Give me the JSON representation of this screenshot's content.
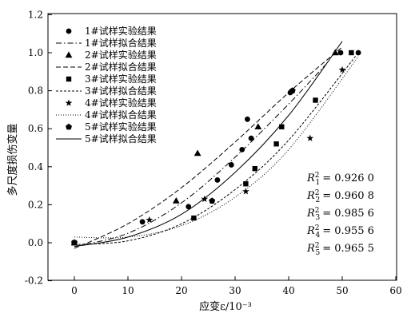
{
  "chart_data": {
    "type": "scatter",
    "title": "",
    "xlabel": "应变ε/10⁻³",
    "ylabel": "多尺度损伤变量",
    "xlim": [
      -5,
      60
    ],
    "ylim": [
      -0.2,
      1.2
    ],
    "xticks": [
      "0",
      "10",
      "20",
      "30",
      "40",
      "50",
      "60"
    ],
    "yticks": [
      "-0.2",
      "0.0",
      "0.2",
      "0.4",
      "0.6",
      "0.8",
      "1.0",
      "1.2"
    ],
    "grid": false,
    "legend_position": "top-left",
    "series": [
      {
        "name": "1#试样实验结果",
        "marker": "circle",
        "points": [
          [
            0,
            0.0
          ],
          [
            12.7,
            0.11
          ],
          [
            21.3,
            0.19
          ],
          [
            26.7,
            0.33
          ],
          [
            29.3,
            0.41
          ],
          [
            31.3,
            0.49
          ],
          [
            32.3,
            0.65
          ],
          [
            33.0,
            0.55
          ],
          [
            40.3,
            0.79
          ],
          [
            49.7,
            1.0
          ],
          [
            53.0,
            1.0
          ]
        ]
      },
      {
        "name": "1#试样拟合结果",
        "style": "dash-dot",
        "fit": [
          [
            0,
            -0.02
          ],
          [
            10,
            0.05
          ],
          [
            20,
            0.21
          ],
          [
            30,
            0.45
          ],
          [
            40,
            0.73
          ],
          [
            47,
            0.94
          ]
        ]
      },
      {
        "name": "2#试样实验结果",
        "marker": "triangle",
        "points": [
          [
            0,
            0.0
          ],
          [
            19.0,
            0.22
          ],
          [
            23.0,
            0.47
          ],
          [
            34.3,
            0.61
          ],
          [
            48.7,
            1.0
          ]
        ]
      },
      {
        "name": "2#试样拟合结果",
        "style": "dashed",
        "fit": [
          [
            0,
            -0.03
          ],
          [
            10,
            0.1
          ],
          [
            20,
            0.29
          ],
          [
            30,
            0.53
          ],
          [
            40,
            0.79
          ],
          [
            50,
            1.03
          ]
        ]
      },
      {
        "name": "3#试样实验结果",
        "marker": "square",
        "points": [
          [
            0,
            0.0
          ],
          [
            22.3,
            0.13
          ],
          [
            32.0,
            0.31
          ],
          [
            33.7,
            0.39
          ],
          [
            37.7,
            0.52
          ],
          [
            38.7,
            0.61
          ],
          [
            45.0,
            0.75
          ],
          [
            51.7,
            1.0
          ]
        ]
      },
      {
        "name": "3#试样拟合结果",
        "style": "short-dash",
        "fit": [
          [
            0,
            -0.01
          ],
          [
            10,
            0.01
          ],
          [
            20,
            0.1
          ],
          [
            30,
            0.28
          ],
          [
            40,
            0.54
          ],
          [
            53,
            1.0
          ]
        ]
      },
      {
        "name": "4#试样实验结果",
        "marker": "star",
        "points": [
          [
            0,
            0.0
          ],
          [
            14.0,
            0.12
          ],
          [
            24.3,
            0.23
          ],
          [
            32.0,
            0.27
          ],
          [
            44.0,
            0.55
          ],
          [
            50.0,
            0.91
          ]
        ]
      },
      {
        "name": "4#试样拟合结果",
        "style": "dotted",
        "fit": [
          [
            0,
            0.03
          ],
          [
            10,
            0.03
          ],
          [
            20,
            0.09
          ],
          [
            30,
            0.24
          ],
          [
            40,
            0.49
          ],
          [
            53,
            0.98
          ]
        ]
      },
      {
        "name": "5#试样实验结果",
        "marker": "pentagon",
        "points": [
          [
            0,
            0.0
          ],
          [
            25.7,
            0.22
          ],
          [
            40.7,
            0.8
          ]
        ]
      },
      {
        "name": "5#试样拟合结果",
        "style": "solid",
        "fit": [
          [
            0,
            -0.02
          ],
          [
            10,
            0.03
          ],
          [
            20,
            0.15
          ],
          [
            30,
            0.37
          ],
          [
            40,
            0.67
          ],
          [
            50,
            1.06
          ]
        ]
      }
    ],
    "annotations": [
      {
        "sub": "1",
        "value": "= 0.926 0"
      },
      {
        "sub": "2",
        "value": "= 0.960 8"
      },
      {
        "sub": "3",
        "value": "= 0.985 6"
      },
      {
        "sub": "4",
        "value": "= 0.955 6"
      },
      {
        "sub": "5",
        "value": "= 0.965 5"
      }
    ]
  }
}
